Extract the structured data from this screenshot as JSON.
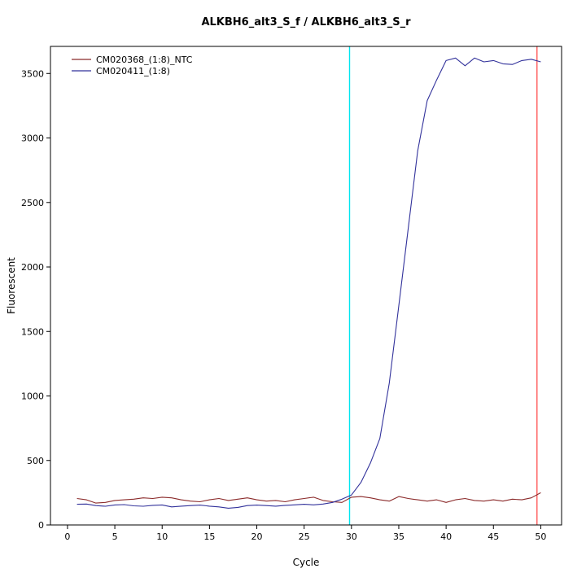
{
  "chart_data": {
    "type": "line",
    "title": "ALKBH6_alt3_S_f / ALKBH6_alt3_S_r",
    "xlabel": "Cycle",
    "ylabel": "Fluorescent",
    "xlim": [
      -1.8,
      52.2
    ],
    "ylim": [
      0,
      3710
    ],
    "xticks": [
      0,
      5,
      10,
      15,
      20,
      25,
      30,
      35,
      40,
      45,
      50
    ],
    "yticks": [
      0,
      500,
      1000,
      1500,
      2000,
      2500,
      3000,
      3500
    ],
    "grid": false,
    "legend_position": "top-left",
    "x": [
      1,
      2,
      3,
      4,
      5,
      6,
      7,
      8,
      9,
      10,
      11,
      12,
      13,
      14,
      15,
      16,
      17,
      18,
      19,
      20,
      21,
      22,
      23,
      24,
      25,
      26,
      27,
      28,
      29,
      30,
      31,
      32,
      33,
      34,
      35,
      36,
      37,
      38,
      39,
      40,
      41,
      42,
      43,
      44,
      45,
      46,
      47,
      48,
      49,
      50
    ],
    "series": [
      {
        "name": "CM020368_(1:8)_NTC",
        "color": "#8b2a2a",
        "values": [
          205,
          195,
          170,
          175,
          190,
          195,
          200,
          210,
          205,
          215,
          210,
          195,
          185,
          180,
          195,
          205,
          190,
          200,
          210,
          195,
          185,
          190,
          180,
          195,
          205,
          215,
          190,
          180,
          175,
          215,
          220,
          210,
          195,
          185,
          220,
          205,
          195,
          185,
          195,
          175,
          195,
          205,
          190,
          185,
          195,
          185,
          200,
          195,
          210,
          250
        ]
      },
      {
        "name": "CM020411_(1:8)",
        "color": "#32329b",
        "values": [
          160,
          162,
          150,
          145,
          155,
          158,
          148,
          145,
          152,
          155,
          140,
          146,
          150,
          154,
          146,
          140,
          130,
          136,
          150,
          154,
          150,
          146,
          152,
          156,
          160,
          156,
          162,
          175,
          200,
          232,
          330,
          480,
          670,
          1100,
          1700,
          2300,
          2900,
          3290,
          3450,
          3600,
          3620,
          3560,
          3620,
          3590,
          3600,
          3575,
          3570,
          3600,
          3610,
          3590
        ]
      }
    ],
    "vlines": [
      {
        "x": 29.8,
        "color": "#00e6f0",
        "name": "threshold-cycle-line"
      },
      {
        "x": 49.6,
        "color": "#ff5a5a",
        "name": "end-cycle-line"
      }
    ],
    "axis_color": "#000000",
    "background": "#ffffff"
  }
}
